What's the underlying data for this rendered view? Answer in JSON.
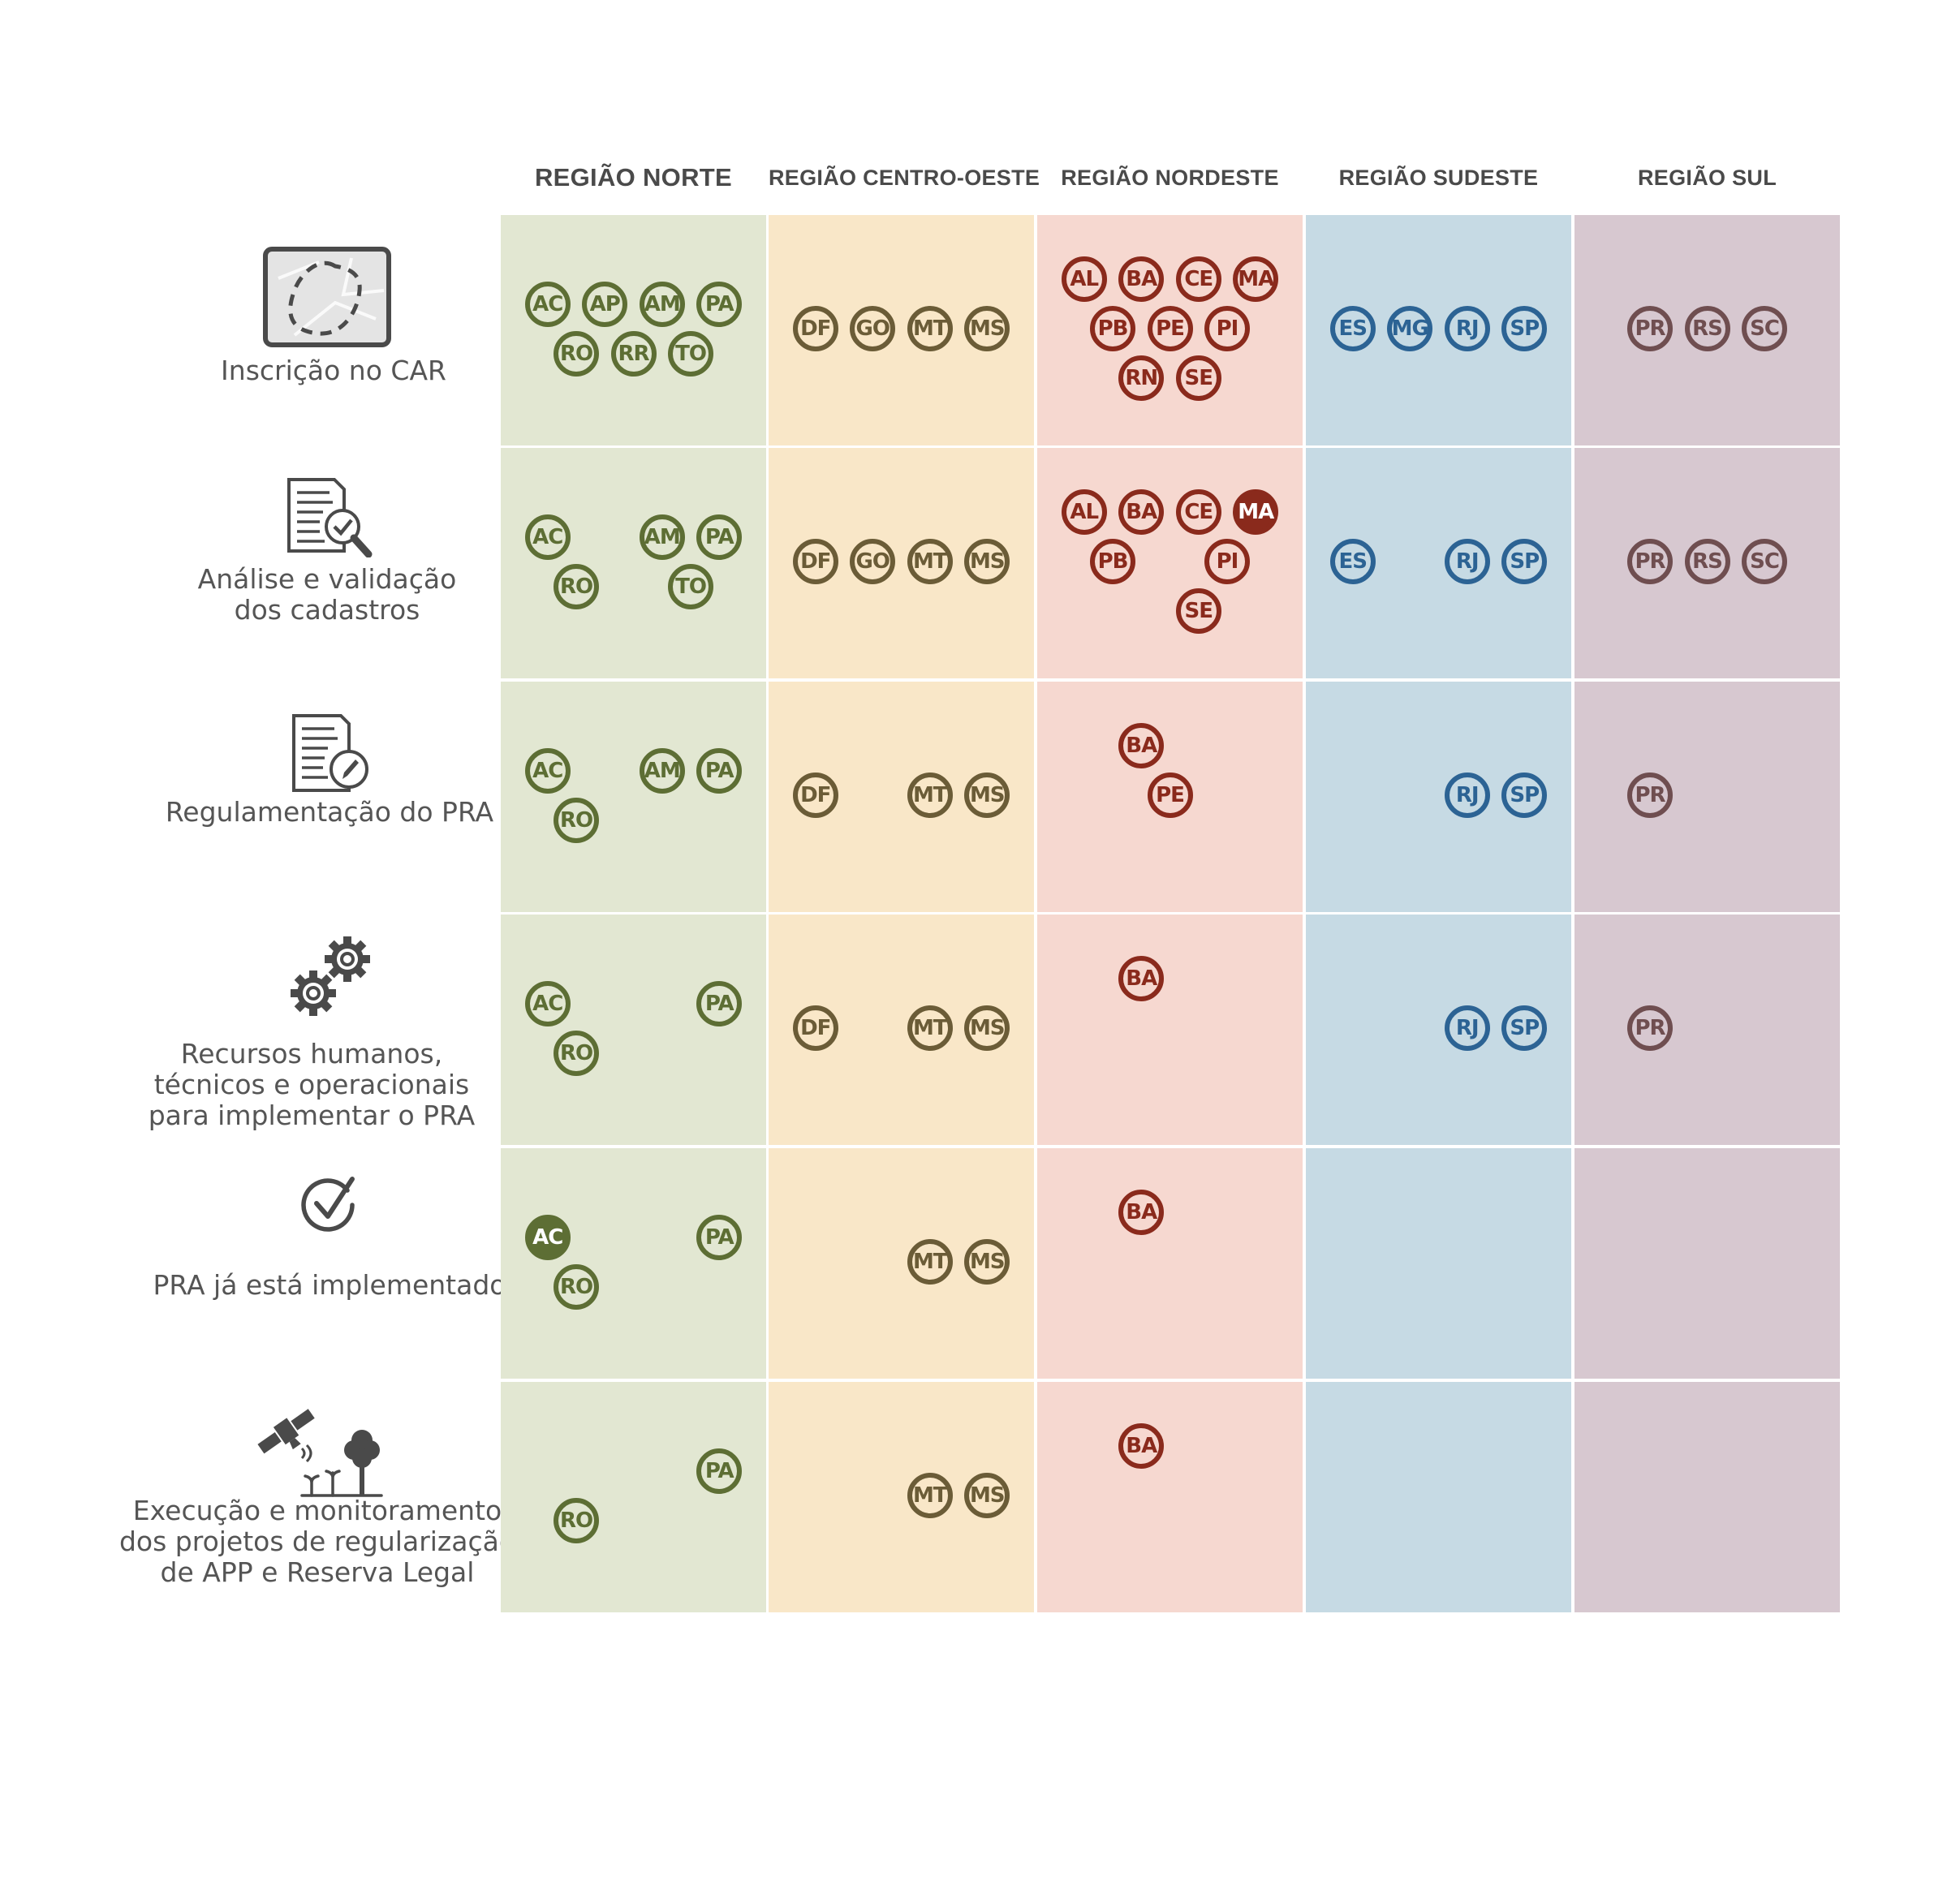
{
  "regions": [
    {
      "id": "norte",
      "label": "REGIÃO NORTE",
      "color": "#5d6e34",
      "fill": "#e2e7d2",
      "columns": [
        [
          "AC",
          "RO"
        ],
        [
          "AP",
          "RR"
        ],
        [
          "AM",
          "TO"
        ],
        [
          "PA"
        ]
      ]
    },
    {
      "id": "centro-oeste",
      "label": "REGIÃO CENTRO-OESTE",
      "color": "#6b5c37",
      "fill": "#f9e7c8",
      "columns": [
        [
          "DF"
        ],
        [
          "GO"
        ],
        [
          "MT"
        ],
        [
          "MS"
        ]
      ]
    },
    {
      "id": "nordeste",
      "label": "REGIÃO NORDESTE",
      "color": "#8a2a1c",
      "fill": "#f6d8d0",
      "columns": [
        [
          "AL",
          "PB"
        ],
        [
          "BA",
          "PE",
          "RN"
        ],
        [
          "CE",
          "PI",
          "SE"
        ],
        [
          "MA"
        ]
      ]
    },
    {
      "id": "sudeste",
      "label": "REGIÃO SUDESTE",
      "color": "#2c6394",
      "fill": "#c6dae4",
      "columns": [
        [
          "ES"
        ],
        [
          "MG"
        ],
        [
          "RJ"
        ],
        [
          "SP"
        ]
      ]
    },
    {
      "id": "sul",
      "label": "REGIÃO SUL",
      "color": "#6f4e50",
      "fill": "#d7c8d0",
      "columns": [
        [
          "PR"
        ],
        [
          "RS"
        ],
        [
          "SC"
        ]
      ]
    }
  ],
  "stages": [
    {
      "id": "inscricao-car",
      "icon": "map-outline-icon",
      "label": [
        "Inscrição no CAR"
      ],
      "states": {
        "norte": [
          "AC",
          "AP",
          "AM",
          "PA",
          "RO",
          "RR",
          "TO"
        ],
        "centro-oeste": [
          "DF",
          "GO",
          "MT",
          "MS"
        ],
        "nordeste": [
          "AL",
          "BA",
          "CE",
          "MA",
          "PB",
          "PE",
          "PI",
          "RN",
          "SE"
        ],
        "sudeste": [
          "ES",
          "MG",
          "RJ",
          "SP"
        ],
        "sul": [
          "PR",
          "RS",
          "SC"
        ]
      },
      "highlighted": []
    },
    {
      "id": "analise-validacao",
      "icon": "document-search-icon",
      "label": [
        "Análise e validação",
        "dos cadastros"
      ],
      "states": {
        "norte": [
          "AC",
          "AM",
          "PA",
          "RO",
          "TO"
        ],
        "centro-oeste": [
          "DF",
          "GO",
          "MT",
          "MS"
        ],
        "nordeste": [
          "AL",
          "BA",
          "CE",
          "MA",
          "PB",
          "PI",
          "SE"
        ],
        "sudeste": [
          "ES",
          "RJ",
          "SP"
        ],
        "sul": [
          "PR",
          "RS",
          "SC"
        ]
      },
      "highlighted": [
        "MA"
      ]
    },
    {
      "id": "regulamentacao-pra",
      "icon": "document-edit-icon",
      "label": [
        "Regulamentação do PRA"
      ],
      "states": {
        "norte": [
          "AC",
          "AM",
          "PA",
          "RO"
        ],
        "centro-oeste": [
          "DF",
          "MT",
          "MS"
        ],
        "nordeste": [
          "BA",
          "PE"
        ],
        "sudeste": [
          "RJ",
          "SP"
        ],
        "sul": [
          "PR"
        ]
      },
      "highlighted": []
    },
    {
      "id": "recursos-pra",
      "icon": "gears-icon",
      "label": [
        "Recursos humanos,",
        "técnicos e operacionais",
        "para implementar o PRA"
      ],
      "states": {
        "norte": [
          "AC",
          "PA",
          "RO"
        ],
        "centro-oeste": [
          "DF",
          "MT",
          "MS"
        ],
        "nordeste": [
          "BA"
        ],
        "sudeste": [
          "RJ",
          "SP"
        ],
        "sul": [
          "PR"
        ]
      },
      "highlighted": []
    },
    {
      "id": "pra-implementado",
      "icon": "check-circle-icon",
      "label": [
        "PRA já está implementado"
      ],
      "states": {
        "norte": [
          "AC",
          "PA",
          "RO"
        ],
        "centro-oeste": [
          "MT",
          "MS"
        ],
        "nordeste": [
          "BA"
        ],
        "sudeste": [],
        "sul": []
      },
      "highlighted": [
        "AC"
      ]
    },
    {
      "id": "execucao-monitoramento",
      "icon": "satellite-tree-icon",
      "label": [
        "Execução e monitoramento",
        "dos projetos de regularização",
        "de APP e Reserva Legal"
      ],
      "states": {
        "norte": [
          "PA",
          "RO"
        ],
        "centro-oeste": [
          "MT",
          "MS"
        ],
        "nordeste": [
          "BA"
        ],
        "sudeste": [],
        "sul": []
      },
      "highlighted": []
    }
  ]
}
